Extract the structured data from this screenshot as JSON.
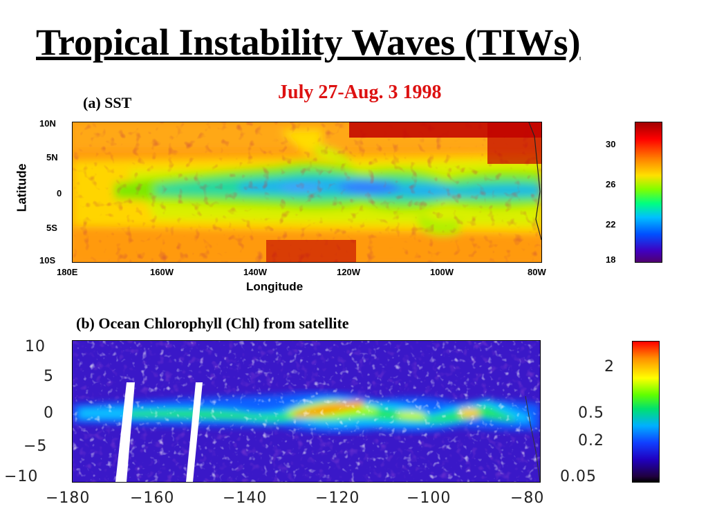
{
  "title": "Tropical Instability Waves (TIWs)",
  "date_label": "July 27-Aug. 3 1998",
  "panel_a": {
    "label": "(a) SST",
    "y_axis_label": "Latitude",
    "x_axis_label": "Longitude",
    "y_ticks": [
      "10N",
      "5N",
      "0",
      "5S",
      "10S"
    ],
    "x_ticks": [
      "180E",
      "160W",
      "140W",
      "120W",
      "100W",
      "80W"
    ],
    "colorbar_ticks": [
      "30",
      "26",
      "22",
      "18"
    ]
  },
  "panel_b": {
    "label": "(b) Ocean Chlorophyll (Chl) from satellite",
    "y_ticks": [
      "10",
      "5",
      "0",
      "−5",
      "−10"
    ],
    "x_ticks": [
      "−180",
      "−160",
      "−140",
      "−120",
      "−100",
      "−80"
    ],
    "colorbar_ticks": [
      "2",
      "0.5",
      "0.2",
      "0.05"
    ]
  }
}
